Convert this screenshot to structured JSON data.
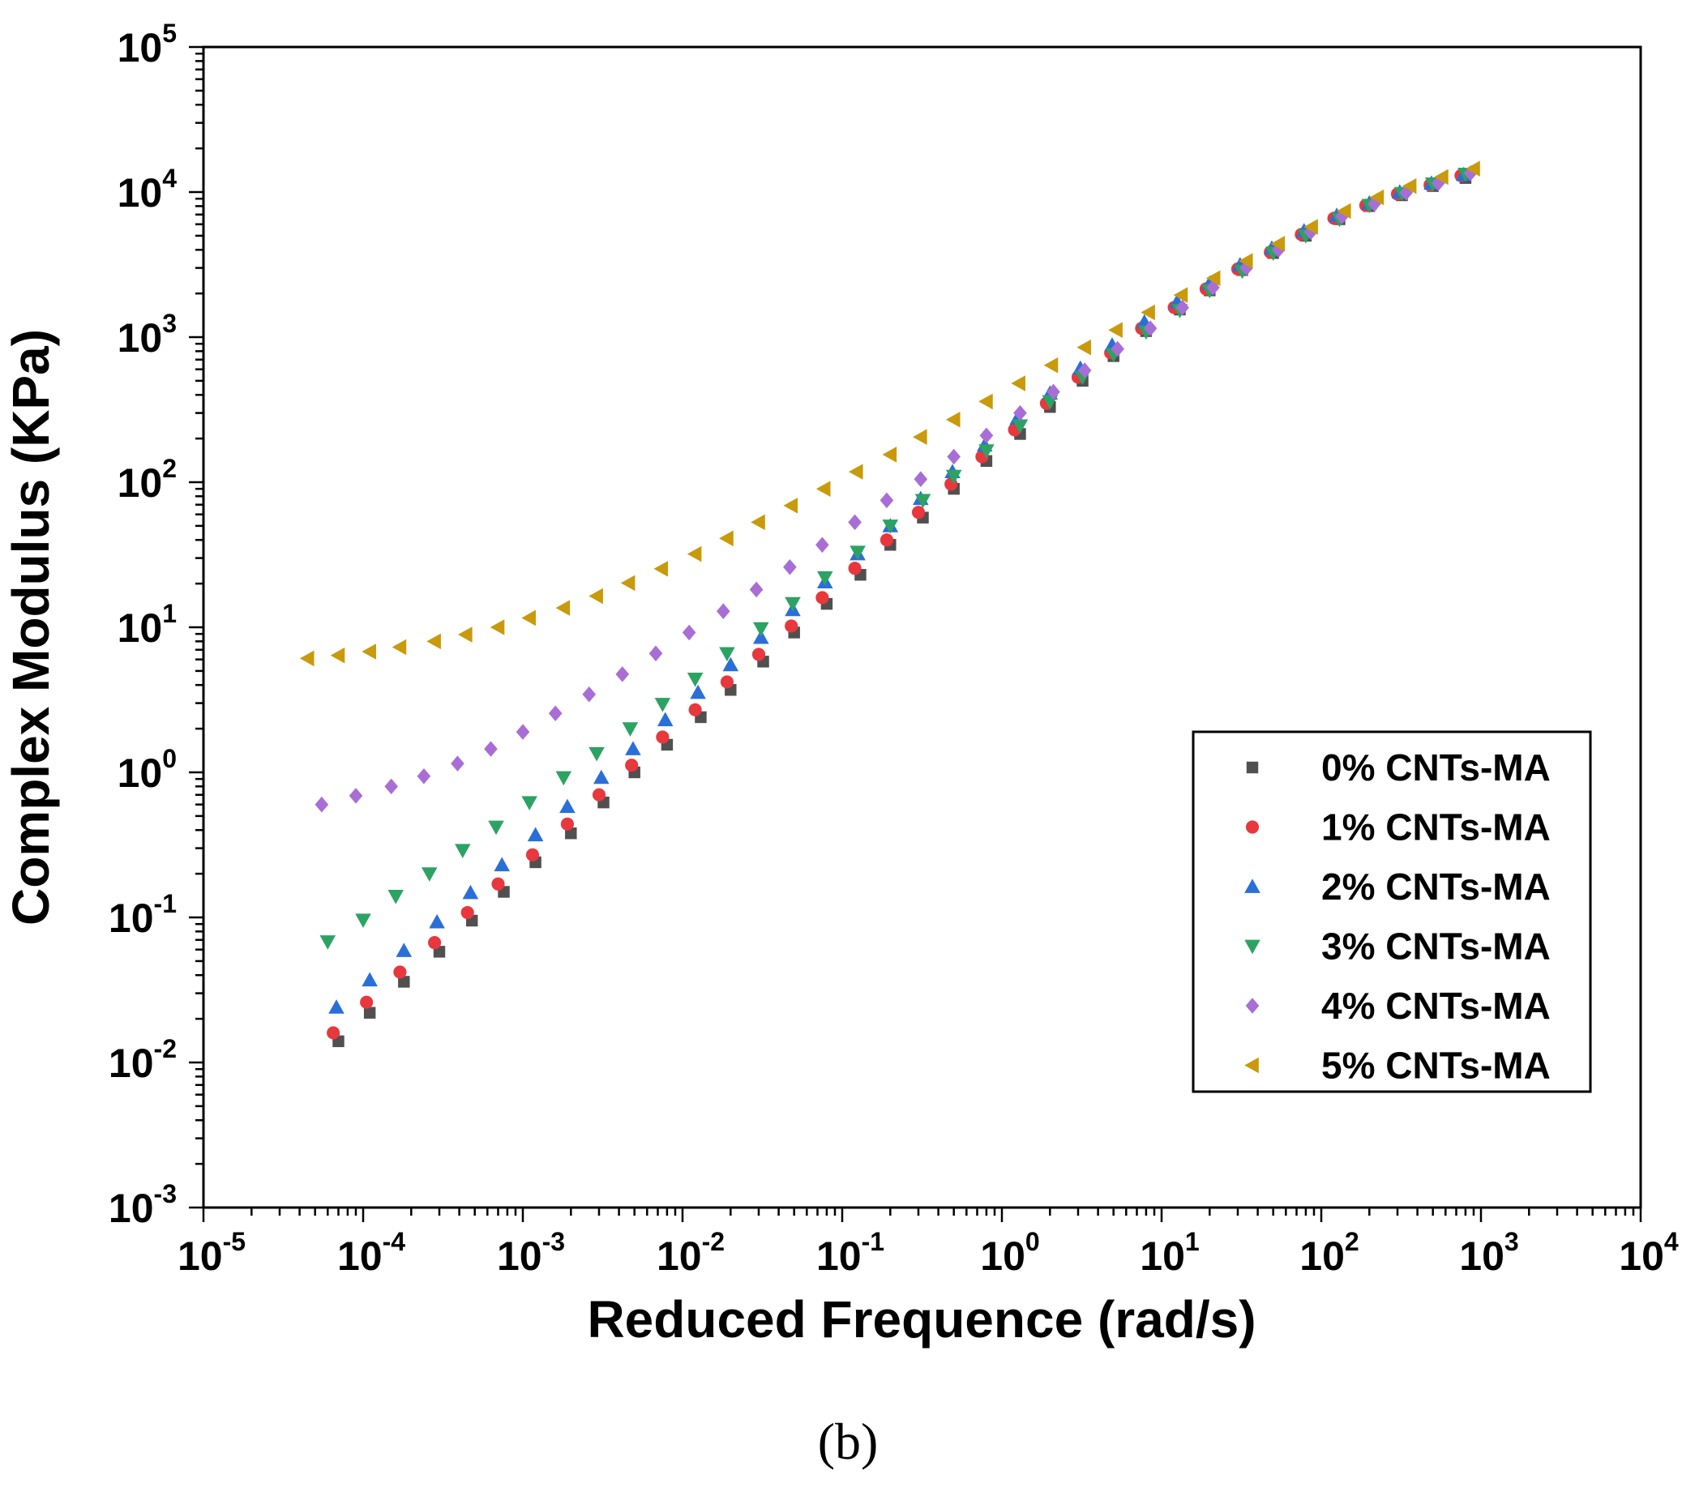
{
  "chart_data": {
    "type": "scatter",
    "xscale": "log",
    "yscale": "log",
    "xlabel": "Reduced Frequence (rad/s)",
    "ylabel": "Complex Modulus (KPa)",
    "caption": "(b)",
    "xlim": [
      1e-05,
      10000
    ],
    "ylim": [
      0.001,
      100000
    ],
    "xticks": [
      {
        "base": "10",
        "exp": "-5"
      },
      {
        "base": "10",
        "exp": "-4"
      },
      {
        "base": "10",
        "exp": "-3"
      },
      {
        "base": "10",
        "exp": "-2"
      },
      {
        "base": "10",
        "exp": "-1"
      },
      {
        "base": "10",
        "exp": "0"
      },
      {
        "base": "10",
        "exp": "1"
      },
      {
        "base": "10",
        "exp": "2"
      },
      {
        "base": "10",
        "exp": "3"
      },
      {
        "base": "10",
        "exp": "4"
      }
    ],
    "yticks": [
      {
        "base": "10",
        "exp": "-3"
      },
      {
        "base": "10",
        "exp": "-2"
      },
      {
        "base": "10",
        "exp": "-1"
      },
      {
        "base": "10",
        "exp": "0"
      },
      {
        "base": "10",
        "exp": "1"
      },
      {
        "base": "10",
        "exp": "2"
      },
      {
        "base": "10",
        "exp": "3"
      },
      {
        "base": "10",
        "exp": "4"
      },
      {
        "base": "10",
        "exp": "5"
      }
    ],
    "legend_position": "center-right",
    "series": [
      {
        "name": "0% CNTs-MA",
        "marker": "square",
        "color": "#505050",
        "x": [
          7e-05,
          0.00011,
          0.00018,
          0.0003,
          0.00048,
          0.00076,
          0.0012,
          0.002,
          0.0032,
          0.005,
          0.008,
          0.013,
          0.02,
          0.032,
          0.05,
          0.08,
          0.13,
          0.2,
          0.32,
          0.5,
          0.8,
          1.3,
          2,
          3.2,
          5,
          8,
          13,
          20,
          32,
          50,
          80,
          130,
          200,
          320,
          500,
          800
        ],
        "y": [
          0.014,
          0.022,
          0.036,
          0.058,
          0.095,
          0.15,
          0.24,
          0.38,
          0.62,
          1.0,
          1.55,
          2.4,
          3.7,
          5.8,
          9.2,
          14.5,
          23,
          37,
          57,
          90,
          140,
          215,
          330,
          500,
          740,
          1100,
          1550,
          2100,
          2900,
          3800,
          5000,
          6500,
          8000,
          9500,
          11000,
          12500
        ]
      },
      {
        "name": "1% CNTs-MA",
        "color": "#e8383d",
        "marker": "circle",
        "x": [
          6.5e-05,
          0.000105,
          0.00017,
          0.00028,
          0.00045,
          0.0007,
          0.00115,
          0.0019,
          0.003,
          0.0048,
          0.0075,
          0.012,
          0.019,
          0.03,
          0.048,
          0.075,
          0.12,
          0.19,
          0.3,
          0.48,
          0.75,
          1.2,
          1.9,
          3,
          4.8,
          7.5,
          12,
          19,
          30,
          48,
          75,
          120,
          190,
          300,
          480,
          750
        ],
        "y": [
          0.016,
          0.026,
          0.042,
          0.067,
          0.108,
          0.17,
          0.27,
          0.44,
          0.7,
          1.12,
          1.75,
          2.7,
          4.2,
          6.5,
          10.2,
          16,
          25.5,
          40,
          62,
          97,
          150,
          230,
          350,
          530,
          780,
          1150,
          1600,
          2150,
          2950,
          3850,
          5100,
          6600,
          8100,
          9700,
          11200,
          13000
        ]
      },
      {
        "name": "2% CNTs-MA",
        "color": "#2a6fd8",
        "marker": "triangle-up",
        "x": [
          6.8e-05,
          0.00011,
          0.00018,
          0.00029,
          0.00047,
          0.00074,
          0.0012,
          0.0019,
          0.0031,
          0.0049,
          0.0078,
          0.0125,
          0.02,
          0.031,
          0.049,
          0.078,
          0.125,
          0.2,
          0.31,
          0.49,
          0.78,
          1.25,
          2,
          3.1,
          4.9,
          7.8,
          12.5,
          20,
          31,
          49,
          78,
          125,
          200,
          310,
          490,
          780
        ],
        "y": [
          0.024,
          0.037,
          0.059,
          0.093,
          0.148,
          0.23,
          0.37,
          0.58,
          0.92,
          1.45,
          2.3,
          3.55,
          5.5,
          8.5,
          13.2,
          20.5,
          32,
          50,
          77,
          118,
          180,
          275,
          410,
          610,
          880,
          1270,
          1750,
          2350,
          3150,
          4100,
          5400,
          6900,
          8400,
          10000,
          11500,
          13200
        ]
      },
      {
        "name": "3% CNTs-MA",
        "color": "#2ca362",
        "marker": "triangle-down",
        "x": [
          6e-05,
          0.0001,
          0.00016,
          0.00026,
          0.00042,
          0.00068,
          0.0011,
          0.0018,
          0.0029,
          0.0047,
          0.0075,
          0.012,
          0.019,
          0.031,
          0.049,
          0.078,
          0.125,
          0.2,
          0.32,
          0.5,
          0.8,
          1.3,
          2,
          3.2,
          5,
          8,
          13,
          20,
          32,
          50,
          80,
          130,
          200,
          320,
          500,
          800
        ],
        "y": [
          0.068,
          0.096,
          0.14,
          0.2,
          0.29,
          0.42,
          0.62,
          0.92,
          1.35,
          2.0,
          2.95,
          4.4,
          6.6,
          9.8,
          14.6,
          22,
          33,
          50,
          75,
          110,
          165,
          245,
          360,
          530,
          760,
          1090,
          1530,
          2100,
          2850,
          3800,
          5000,
          6500,
          8100,
          9800,
          11400,
          13300
        ]
      },
      {
        "name": "4% CNTs-MA",
        "color": "#a86ed6",
        "marker": "diamond",
        "x": [
          5.5e-05,
          9e-05,
          0.00015,
          0.00024,
          0.00039,
          0.00063,
          0.001,
          0.0016,
          0.0026,
          0.0042,
          0.0068,
          0.011,
          0.018,
          0.029,
          0.047,
          0.075,
          0.12,
          0.19,
          0.31,
          0.5,
          0.8,
          1.3,
          2.1,
          3.3,
          5.3,
          8.5,
          13.5,
          21,
          34,
          54,
          86,
          135,
          215,
          340,
          540,
          860
        ],
        "y": [
          0.6,
          0.69,
          0.8,
          0.94,
          1.15,
          1.45,
          1.9,
          2.55,
          3.45,
          4.75,
          6.6,
          9.2,
          12.9,
          18.2,
          26,
          37,
          53,
          75,
          105,
          150,
          210,
          300,
          420,
          590,
          830,
          1150,
          1600,
          2200,
          3000,
          4000,
          5300,
          6800,
          8300,
          9900,
          11500,
          13500
        ]
      },
      {
        "name": "5% CNTs-MA",
        "color": "#c89a0c",
        "marker": "triangle-left",
        "x": [
          4.5e-05,
          7e-05,
          0.00011,
          0.00017,
          0.00028,
          0.00044,
          0.0007,
          0.0011,
          0.0018,
          0.0029,
          0.0046,
          0.0074,
          0.012,
          0.019,
          0.03,
          0.048,
          0.077,
          0.123,
          0.2,
          0.31,
          0.5,
          0.8,
          1.28,
          2.05,
          3.3,
          5.2,
          8.3,
          13.3,
          21.3,
          34,
          54,
          87,
          140,
          225,
          360,
          570,
          900
        ],
        "y": [
          6.1,
          6.4,
          6.8,
          7.3,
          8.0,
          8.9,
          10.0,
          11.6,
          13.6,
          16.4,
          20.2,
          25.3,
          32,
          41,
          53,
          69,
          90,
          118,
          155,
          205,
          270,
          360,
          480,
          640,
          850,
          1120,
          1480,
          1950,
          2550,
          3350,
          4400,
          5750,
          7400,
          9200,
          11000,
          12700,
          14500
        ]
      }
    ]
  }
}
